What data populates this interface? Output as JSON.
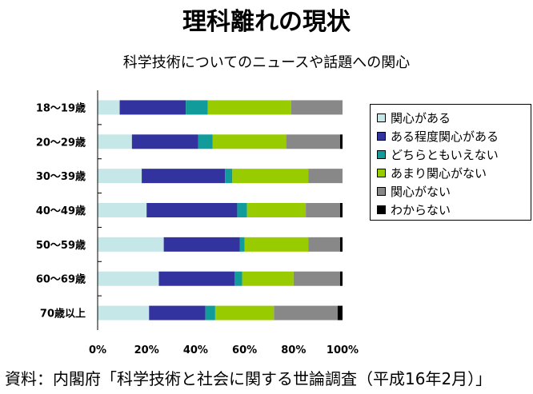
{
  "header": {
    "title": "理科離れの現状",
    "subtitle": "科学技術についてのニュースや話題への関心"
  },
  "chart_data": {
    "type": "bar",
    "orientation": "horizontal",
    "stacked": true,
    "percent": true,
    "categories": [
      "18〜19歳",
      "20〜29歳",
      "30〜39歳",
      "40〜49歳",
      "50〜59歳",
      "60〜69歳",
      "70歳以上"
    ],
    "series": [
      {
        "name": "関心がある",
        "color": "#c6e7e7",
        "values": [
          9,
          14,
          18,
          20,
          27,
          25,
          21
        ]
      },
      {
        "name": "ある程度関心がある",
        "color": "#3333a0",
        "values": [
          27,
          27,
          34,
          37,
          31,
          31,
          23
        ]
      },
      {
        "name": "どちらともいえない",
        "color": "#129b9b",
        "values": [
          9,
          6,
          3,
          4,
          2,
          3,
          4
        ]
      },
      {
        "name": "あまり関心がない",
        "color": "#99cc00",
        "values": [
          34,
          30,
          31,
          24,
          26,
          21,
          24
        ]
      },
      {
        "name": "関心がない",
        "color": "#888888",
        "values": [
          21,
          22,
          14,
          14,
          13,
          19,
          26
        ]
      },
      {
        "name": "わからない",
        "color": "#000000",
        "values": [
          0,
          1,
          0,
          1,
          1,
          1,
          2
        ]
      }
    ],
    "x_ticks": [
      "0%",
      "20%",
      "40%",
      "60%",
      "80%",
      "100%"
    ],
    "xlim": [
      0,
      100
    ],
    "legend_position": "right",
    "grid": false
  },
  "source": "資料：内閣府「科学技術と社会に関する世論調査（平成16年2月）」"
}
